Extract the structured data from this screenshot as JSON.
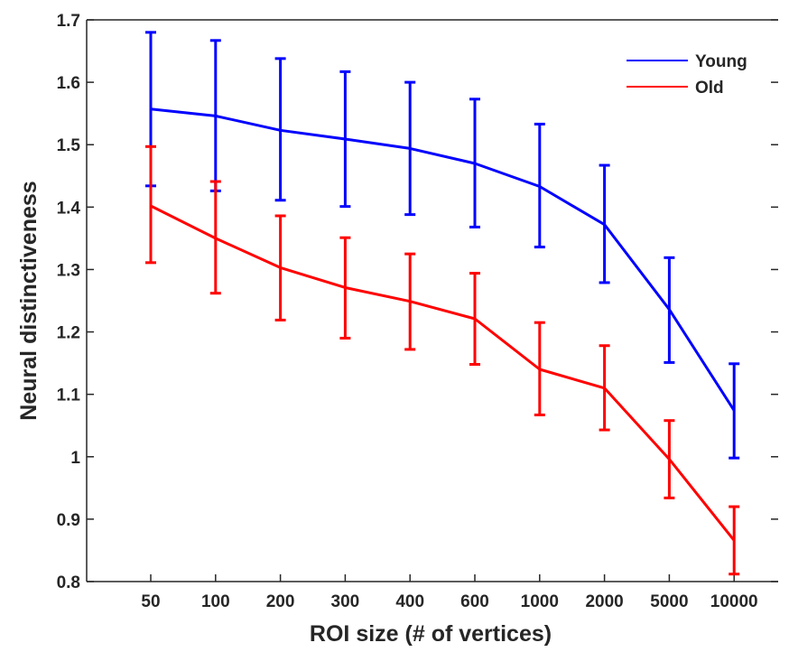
{
  "chart_data": {
    "type": "line",
    "title": "",
    "xlabel": "ROI size (# of vertices)",
    "ylabel": "Neural distinctiveness",
    "categories": [
      "50",
      "100",
      "200",
      "300",
      "400",
      "600",
      "1000",
      "2000",
      "5000",
      "10000"
    ],
    "ylim": [
      0.8,
      1.7
    ],
    "yticks": [
      "0.8",
      "0.9",
      "1",
      "1.1",
      "1.2",
      "1.3",
      "1.4",
      "1.5",
      "1.6",
      "1.7"
    ],
    "grid": false,
    "legend_position": "top-right",
    "series": [
      {
        "name": "Young",
        "color": "#0000ff",
        "values": [
          1.557,
          1.546,
          1.523,
          1.509,
          1.494,
          1.47,
          1.433,
          1.372,
          1.236,
          1.074
        ],
        "err_low": [
          1.434,
          1.426,
          1.411,
          1.401,
          1.388,
          1.368,
          1.336,
          1.279,
          1.151,
          0.998
        ],
        "err_high": [
          1.68,
          1.667,
          1.638,
          1.617,
          1.6,
          1.573,
          1.533,
          1.467,
          1.319,
          1.149
        ]
      },
      {
        "name": "Old",
        "color": "#ff0000",
        "values": [
          1.402,
          1.35,
          1.303,
          1.271,
          1.249,
          1.221,
          1.14,
          1.11,
          0.996,
          0.866
        ],
        "err_low": [
          1.311,
          1.262,
          1.219,
          1.19,
          1.172,
          1.148,
          1.067,
          1.043,
          0.934,
          0.812
        ],
        "err_high": [
          1.497,
          1.441,
          1.386,
          1.351,
          1.325,
          1.294,
          1.215,
          1.178,
          1.058,
          0.92
        ]
      }
    ]
  }
}
